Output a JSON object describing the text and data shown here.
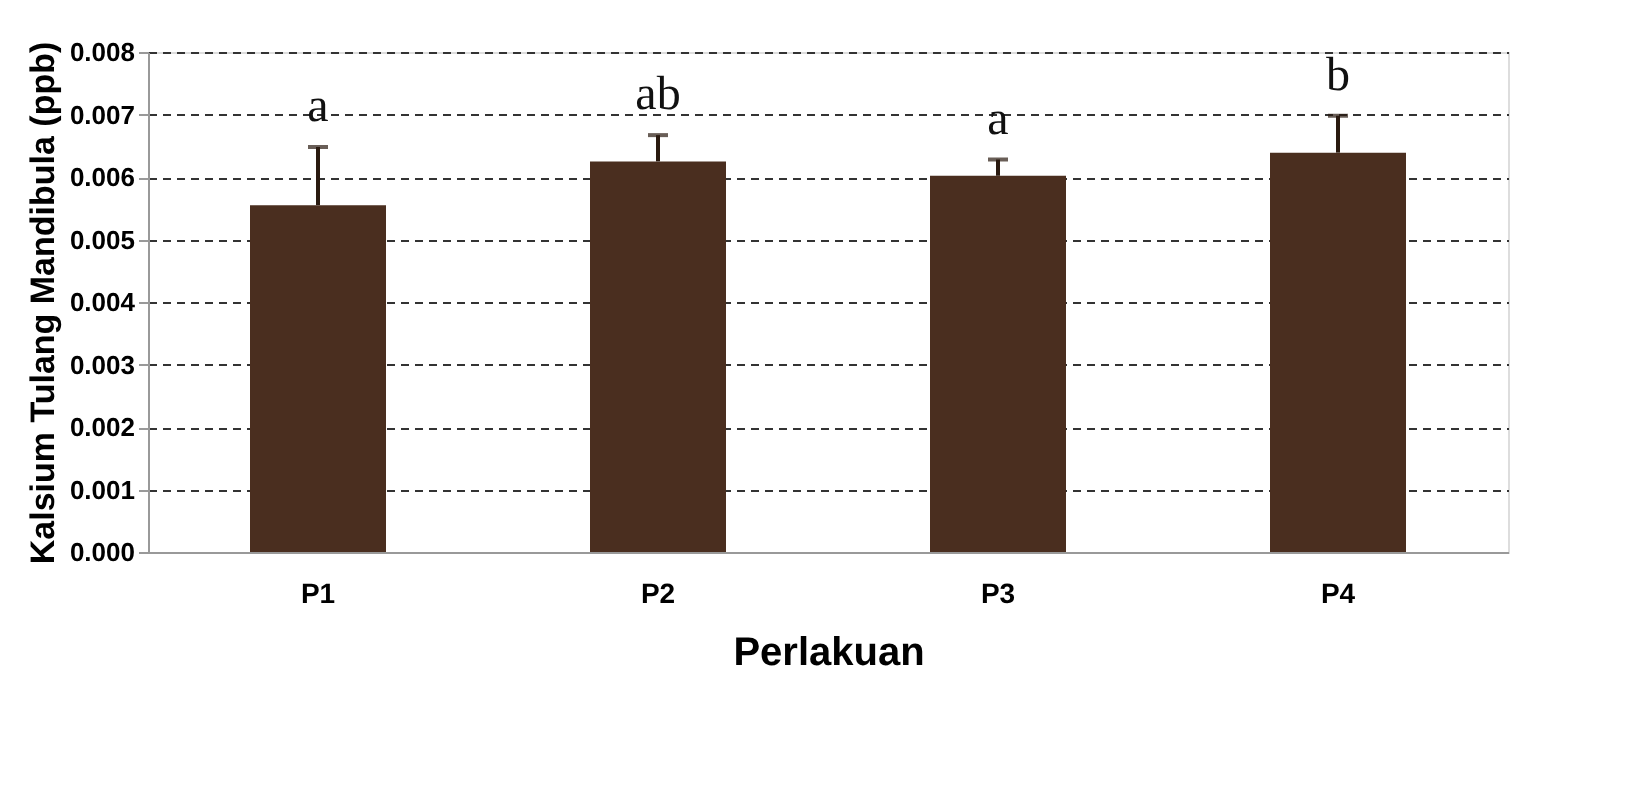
{
  "chart_data": {
    "type": "bar",
    "xlabel": "Perlakuan",
    "ylabel": "Kalsium Tulang Mandibula (ppb)",
    "categories": [
      "P1",
      "P2",
      "P3",
      "P4"
    ],
    "values": [
      0.00555,
      0.00625,
      0.00602,
      0.00639
    ],
    "errors": [
      [
        0.00555,
        0.00648
      ],
      [
        0.00625,
        0.00667
      ],
      [
        0.00602,
        0.00628
      ],
      [
        0.00639,
        0.00698
      ]
    ],
    "color": "#4a2e1f",
    "ylim": [
      0,
      0.008
    ],
    "yticks": [
      {
        "value": 0,
        "label": "0.000"
      },
      {
        "value": 0.001,
        "label": "0.001"
      },
      {
        "value": 0.002,
        "label": "0.002"
      },
      {
        "value": 0.003,
        "label": "0.003"
      },
      {
        "value": 0.004,
        "label": "0.004"
      },
      {
        "value": 0.005,
        "label": "0.005"
      },
      {
        "value": 0.006,
        "label": "0.006"
      },
      {
        "value": 0.007,
        "label": "0.007"
      },
      {
        "value": 0.008,
        "label": "0.008"
      }
    ],
    "grid": "y",
    "annotations": [
      "a",
      "ab",
      "a",
      "b"
    ]
  }
}
